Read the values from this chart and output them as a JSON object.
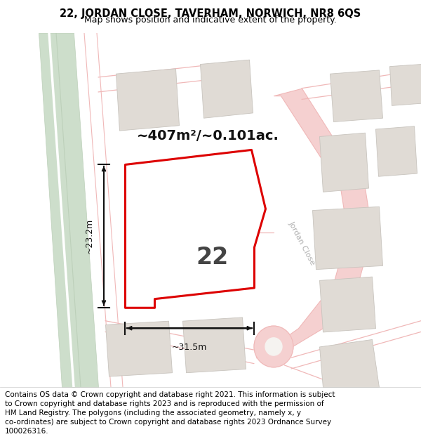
{
  "title_line1": "22, JORDAN CLOSE, TAVERHAM, NORWICH, NR8 6QS",
  "title_line2": "Map shows position and indicative extent of the property.",
  "area_label": "~407m²/~0.101ac.",
  "plot_number": "22",
  "dim_width": "~31.5m",
  "dim_height": "~23.2m",
  "footer_lines": [
    "Contains OS data © Crown copyright and database right 2021. This information is subject",
    "to Crown copyright and database rights 2023 and is reproduced with the permission of",
    "HM Land Registry. The polygons (including the associated geometry, namely x, y",
    "co-ordinates) are subject to Crown copyright and database rights 2023 Ordnance Survey",
    "100026316."
  ],
  "map_bg": "#f5f3f0",
  "road_line_color": "#f0b8b8",
  "road_fill_color": "#f5d0d0",
  "green_fill": "#cddecb",
  "green_edge": "#bdd0ba",
  "building_fill": "#e0dbd5",
  "building_edge": "#c8c4be",
  "plot_outline_color": "#dd0000",
  "plot_fill": "#ffffff",
  "arrow_color": "#111111",
  "text_color": "#111111",
  "road_label_color": "#b0b0b0",
  "street_name": "Jordan Close",
  "title_fontsize": 10.5,
  "subtitle_fontsize": 9,
  "footer_fontsize": 7.5,
  "area_fontsize": 14,
  "plot_num_fontsize": 24,
  "dim_fontsize": 9
}
